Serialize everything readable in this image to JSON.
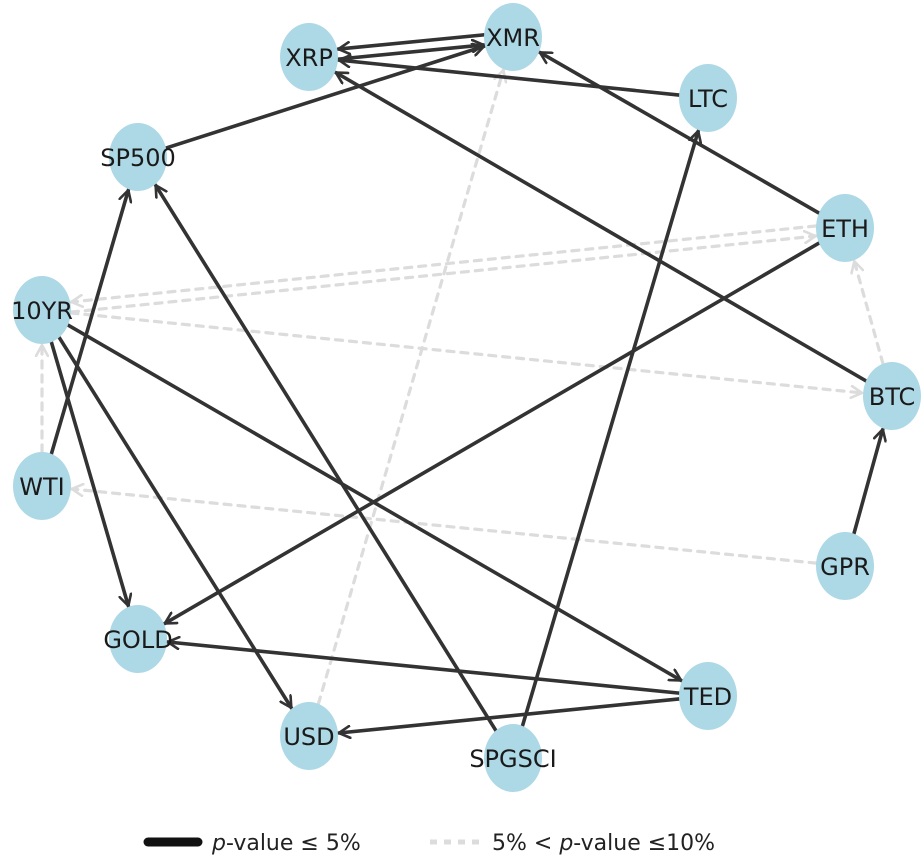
{
  "colors": {
    "node_fill": "#add8e6",
    "edge_significant": "#333333",
    "edge_weak": "#dcdcdc",
    "background": "#ffffff"
  },
  "nodes": [
    {
      "id": "XMR",
      "label": "XMR"
    },
    {
      "id": "XRP",
      "label": "XRP"
    },
    {
      "id": "LTC",
      "label": "LTC"
    },
    {
      "id": "SP500",
      "label": "SP500"
    },
    {
      "id": "ETH",
      "label": "ETH"
    },
    {
      "id": "10YR",
      "label": "10YR"
    },
    {
      "id": "BTC",
      "label": "BTC"
    },
    {
      "id": "WTI",
      "label": "WTI"
    },
    {
      "id": "GPR",
      "label": "GPR"
    },
    {
      "id": "GOLD",
      "label": "GOLD"
    },
    {
      "id": "TED",
      "label": "TED"
    },
    {
      "id": "USD",
      "label": "USD"
    },
    {
      "id": "SPGSCI",
      "label": "SPGSCI"
    }
  ],
  "edges": [
    {
      "from": "XRP",
      "to": "XMR",
      "significance": "p<=5%"
    },
    {
      "from": "XMR",
      "to": "XRP",
      "significance": "p<=5%"
    },
    {
      "from": "LTC",
      "to": "XRP",
      "significance": "p<=5%"
    },
    {
      "from": "SP500",
      "to": "XMR",
      "significance": "p<=5%"
    },
    {
      "from": "ETH",
      "to": "XMR",
      "significance": "p<=5%"
    },
    {
      "from": "BTC",
      "to": "XRP",
      "significance": "p<=5%"
    },
    {
      "from": "GPR",
      "to": "BTC",
      "significance": "p<=5%"
    },
    {
      "from": "WTI",
      "to": "SP500",
      "significance": "p<=5%"
    },
    {
      "from": "SPGSCI",
      "to": "SP500",
      "significance": "p<=5%"
    },
    {
      "from": "SPGSCI",
      "to": "LTC",
      "significance": "p<=5%"
    },
    {
      "from": "ETH",
      "to": "GOLD",
      "significance": "p<=5%"
    },
    {
      "from": "10YR",
      "to": "GOLD",
      "significance": "p<=5%"
    },
    {
      "from": "10YR",
      "to": "USD",
      "significance": "p<=5%"
    },
    {
      "from": "10YR",
      "to": "TED",
      "significance": "p<=5%"
    },
    {
      "from": "TED",
      "to": "GOLD",
      "significance": "p<=5%"
    },
    {
      "from": "TED",
      "to": "USD",
      "significance": "p<=5%"
    },
    {
      "from": "10YR",
      "to": "ETH",
      "significance": "5%<p<=10%"
    },
    {
      "from": "ETH",
      "to": "10YR",
      "significance": "5%<p<=10%"
    },
    {
      "from": "10YR",
      "to": "BTC",
      "significance": "5%<p<=10%"
    },
    {
      "from": "BTC",
      "to": "ETH",
      "significance": "5%<p<=10%"
    },
    {
      "from": "GPR",
      "to": "WTI",
      "significance": "5%<p<=10%"
    },
    {
      "from": "USD",
      "to": "XMR",
      "significance": "5%<p<=10%"
    },
    {
      "from": "WTI",
      "to": "10YR",
      "significance": "5%<p<=10%"
    }
  ],
  "legend": {
    "significant": {
      "p": "p",
      "rest": "-value ≤ 5%"
    },
    "weak": {
      "prefix": "5% < ",
      "p": "p",
      "rest": "-value ≤10%"
    }
  }
}
